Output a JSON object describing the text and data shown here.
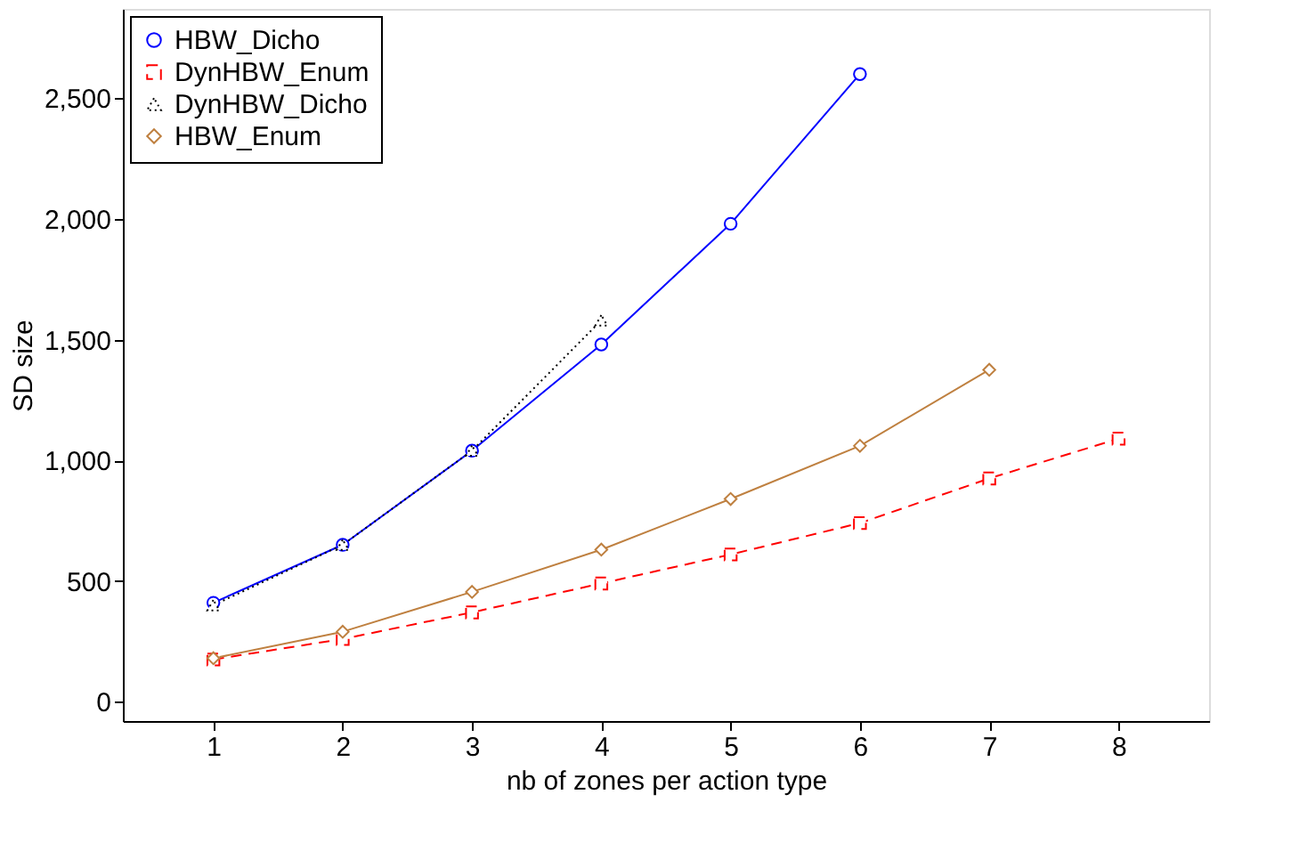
{
  "chart_data": {
    "type": "line",
    "xlabel": "nb of zones per action type",
    "ylabel": "SD size",
    "x": [
      1,
      2,
      3,
      4,
      5,
      6,
      7,
      8
    ],
    "xlim": [
      0.3,
      8.7
    ],
    "xticks": [
      1,
      2,
      3,
      4,
      5,
      6,
      7,
      8
    ],
    "ylim": [
      -80,
      2870
    ],
    "yticks": [
      {
        "value": 0,
        "label": "0"
      },
      {
        "value": 500,
        "label": "500"
      },
      {
        "value": 1000,
        "label": "1,000"
      },
      {
        "value": 1500,
        "label": "1,500"
      },
      {
        "value": 2000,
        "label": "2,000"
      },
      {
        "value": 2500,
        "label": "2,500"
      }
    ],
    "grid": false,
    "legend": "top left",
    "series": [
      {
        "name": "HBW_Dicho",
        "color": "#0000ff",
        "marker": "circle",
        "line_style": "solid",
        "values": [
          410,
          650,
          1040,
          1480,
          1980,
          2600,
          null,
          null
        ]
      },
      {
        "name": "DynHBW_Enum",
        "color": "#ff0000",
        "marker": "square",
        "line_style": "dashed",
        "values": [
          175,
          260,
          370,
          490,
          610,
          740,
          925,
          1090
        ]
      },
      {
        "name": "DynHBW_Dicho",
        "color": "#000000",
        "marker": "triangle",
        "line_style": "dotted",
        "values": [
          400,
          650,
          1040,
          1580,
          null,
          null,
          null,
          null
        ]
      },
      {
        "name": "HBW_Enum",
        "color": "#bf8040",
        "marker": "diamond",
        "line_style": "solid",
        "values": [
          180,
          290,
          455,
          630,
          840,
          1060,
          1375,
          null
        ]
      }
    ]
  }
}
